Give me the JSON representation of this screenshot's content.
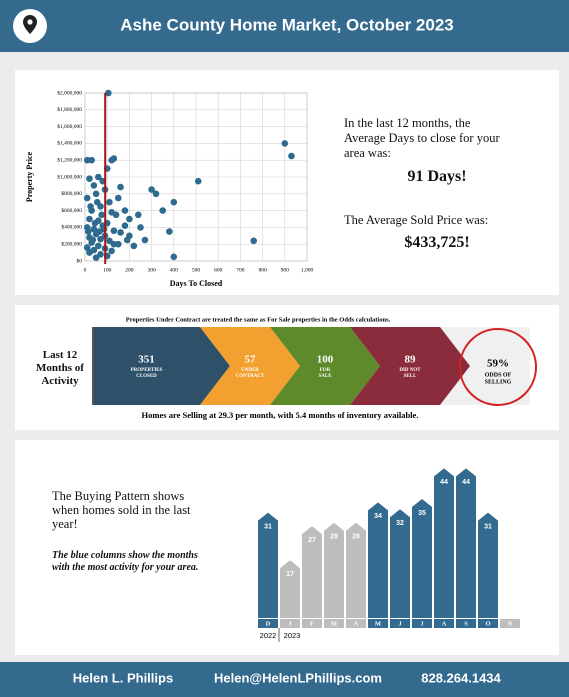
{
  "header": {
    "title": "Ashe County Home Market, October 2023"
  },
  "chart_data": [
    {
      "type": "scatter",
      "x_label": "Days To Closed",
      "y_label": "Property Price",
      "color": "#2f6a8f",
      "x": [
        105,
        900,
        930,
        510,
        760,
        400,
        300,
        320,
        350,
        400,
        380,
        270,
        250,
        200,
        180,
        150,
        160,
        120,
        130,
        10,
        30,
        100,
        60,
        20,
        80,
        40,
        90,
        50,
        10,
        110,
        70,
        30,
        120,
        140,
        20,
        60,
        100,
        80,
        10,
        40,
        130,
        160,
        50,
        90,
        20,
        70,
        110,
        30,
        150,
        60,
        10,
        90,
        40,
        120,
        20,
        70,
        100,
        50,
        130,
        200,
        220,
        180,
        240,
        190,
        15,
        45,
        75,
        25,
        55,
        85,
        35,
        65
      ],
      "y": [
        2000000,
        1400000,
        1250000,
        950000,
        240000,
        50000,
        850000,
        800000,
        600000,
        700000,
        350000,
        250000,
        400000,
        500000,
        600000,
        750000,
        880000,
        1200000,
        1220000,
        1200000,
        1200000,
        1100000,
        1000000,
        980000,
        950000,
        900000,
        850000,
        800000,
        750000,
        700000,
        650000,
        600000,
        580000,
        550000,
        500000,
        480000,
        450000,
        420000,
        400000,
        380000,
        360000,
        340000,
        320000,
        300000,
        280000,
        260000,
        240000,
        220000,
        200000,
        180000,
        160000,
        150000,
        130000,
        120000,
        100000,
        80000,
        60000,
        40000,
        200000,
        300000,
        180000,
        420000,
        550000,
        250000,
        350000,
        450000,
        550000,
        650000,
        700000,
        380000,
        250000,
        350000
      ],
      "xlim": [
        0,
        1000
      ],
      "xticks": [
        0,
        100,
        200,
        300,
        400,
        500,
        600,
        700,
        800,
        900,
        {
          "value": 1000,
          "label": "1,000"
        }
      ],
      "ylim": [
        0,
        2000000
      ],
      "yticks": [
        {
          "value": 0,
          "label": "$0"
        },
        {
          "value": 200000,
          "label": "$200,000"
        },
        {
          "value": 400000,
          "label": "$400,000"
        },
        {
          "value": 600000,
          "label": "$600,000"
        },
        {
          "value": 800000,
          "label": "$800,000"
        },
        {
          "value": 1000000,
          "label": "$1,000,000"
        },
        {
          "value": 1200000,
          "label": "$1,200,000"
        },
        {
          "value": 1400000,
          "label": "$1,400,000"
        },
        {
          "value": 1600000,
          "label": "$1,600,000"
        },
        {
          "value": 1800000,
          "label": "$1,800,000"
        },
        {
          "value": 2000000,
          "label": "$2,000,000"
        }
      ],
      "grid": true,
      "reference_x": 91,
      "reference_color": "#a31515"
    },
    {
      "type": "bar",
      "categories": [
        "D",
        "J",
        "F",
        "M",
        "A",
        "M",
        "J",
        "J",
        "A",
        "S",
        "O",
        "N"
      ],
      "values": [
        31,
        17,
        27,
        28,
        28,
        34,
        32,
        35,
        44,
        44,
        31,
        null
      ],
      "colors": [
        "#336a8f",
        "#bdbdbd",
        "#bdbdbd",
        "#bdbdbd",
        "#bdbdbd",
        "#336a8f",
        "#336a8f",
        "#336a8f",
        "#336a8f",
        "#336a8f",
        "#336a8f",
        "#bdbdbd"
      ],
      "year_labels": [
        "2022",
        "2023"
      ]
    }
  ],
  "summary": {
    "days_intro": "In the last 12 months, the Average Days to close for your area was:",
    "days": "91 Days!",
    "price_intro": "The Average Sold Price was:",
    "price": "$433,725!"
  },
  "activity": {
    "label": "Last 12 Months of Activity",
    "note": "Properties Under Contract are treated the same as For Sale properties in the Odds calculations.",
    "segments": [
      {
        "value": 351,
        "label": [
          "PROPERTIES",
          "CLOSED"
        ],
        "color": "#2e5169"
      },
      {
        "value": 57,
        "label": [
          "UNDER",
          "CONTRACT"
        ],
        "color": "#f2a02f"
      },
      {
        "value": 100,
        "label": [
          "FOR",
          "SALE"
        ],
        "color": "#5f8a2c"
      },
      {
        "value": 89,
        "label": [
          "DID NOT",
          "SELL"
        ],
        "color": "#8a2c3b"
      }
    ],
    "odds": {
      "value": "59%",
      "label": [
        "ODDS OF",
        "SELLING"
      ]
    },
    "footer": "Homes are Selling at 29.3 per month, with 5.4 months of inventory available."
  },
  "buying": {
    "text": "The Buying Pattern shows when homes sold in the last year!",
    "note": "The blue columns show the months with the most activity for your area."
  },
  "footer": {
    "name": "Helen L. Phillips",
    "email": "Helen@HelenLPhillips.com",
    "phone": "828.264.1434"
  }
}
